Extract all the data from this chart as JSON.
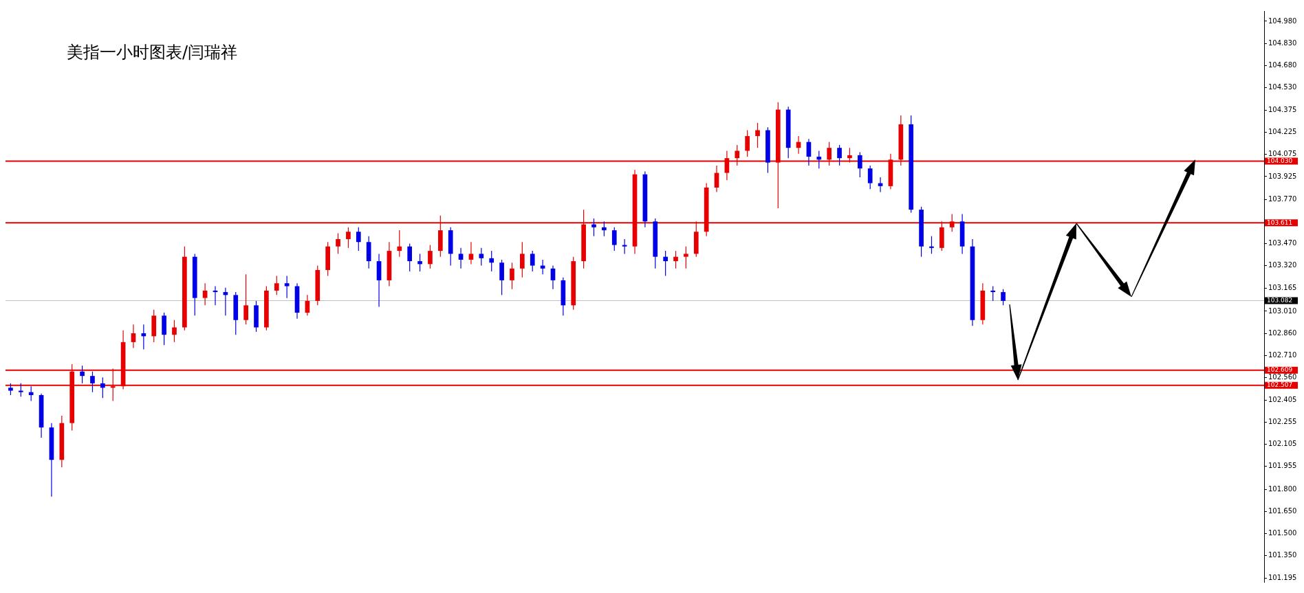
{
  "chart_data": {
    "type": "candlestick",
    "title": "美指一小时图表/闫瑞祥",
    "categories": [
      null,
      null,
      null,
      null,
      null,
      null,
      null,
      null,
      null,
      null,
      null,
      null,
      null,
      null,
      null,
      null,
      null,
      null,
      null,
      null,
      null,
      null,
      null,
      null,
      null,
      null,
      null,
      null,
      null,
      null,
      null,
      null,
      null,
      null,
      null,
      null,
      null,
      null,
      null,
      null,
      null,
      null,
      null,
      null,
      null,
      null,
      null,
      null,
      null,
      null,
      null,
      null,
      null,
      null,
      null,
      null,
      null,
      null,
      null,
      null,
      null,
      null,
      null,
      null,
      null,
      null,
      null,
      null,
      null,
      null,
      null,
      null,
      null,
      null,
      null,
      null,
      null,
      null,
      null,
      null,
      null,
      null,
      null,
      null,
      null,
      null,
      null,
      null,
      null,
      null,
      null,
      null,
      null,
      null,
      null,
      null,
      null,
      null,
      null,
      null,
      null,
      null,
      null,
      null,
      null,
      null,
      null,
      null,
      null,
      null,
      null,
      null,
      null,
      null,
      null,
      null,
      null,
      null,
      null,
      null,
      null,
      null,
      null
    ],
    "ohlc": [
      [
        102.49,
        102.52,
        102.44,
        102.47
      ],
      [
        102.47,
        102.52,
        102.43,
        102.46
      ],
      [
        102.46,
        102.5,
        102.4,
        102.44
      ],
      [
        102.44,
        102.45,
        102.15,
        102.22
      ],
      [
        102.22,
        102.25,
        101.75,
        102.0
      ],
      [
        102.0,
        102.3,
        101.95,
        102.25
      ],
      [
        102.25,
        102.65,
        102.2,
        102.6
      ],
      [
        102.6,
        102.64,
        102.52,
        102.57
      ],
      [
        102.57,
        102.6,
        102.46,
        102.52
      ],
      [
        102.52,
        102.56,
        102.42,
        102.49
      ],
      [
        102.49,
        102.62,
        102.4,
        102.5
      ],
      [
        102.5,
        102.88,
        102.48,
        102.8
      ],
      [
        102.8,
        102.92,
        102.76,
        102.86
      ],
      [
        102.86,
        102.92,
        102.75,
        102.84
      ],
      [
        102.84,
        103.02,
        102.8,
        102.98
      ],
      [
        102.98,
        103.0,
        102.78,
        102.85
      ],
      [
        102.85,
        102.95,
        102.8,
        102.9
      ],
      [
        102.9,
        103.45,
        102.88,
        103.38
      ],
      [
        103.38,
        103.4,
        102.98,
        103.1
      ],
      [
        103.1,
        103.2,
        103.05,
        103.15
      ],
      [
        103.15,
        103.18,
        103.05,
        103.14
      ],
      [
        103.14,
        103.17,
        102.98,
        103.12
      ],
      [
        103.12,
        103.14,
        102.85,
        102.95
      ],
      [
        102.95,
        103.26,
        102.92,
        103.05
      ],
      [
        103.05,
        103.08,
        102.87,
        102.9
      ],
      [
        102.9,
        103.18,
        102.88,
        103.15
      ],
      [
        103.15,
        103.25,
        103.12,
        103.2
      ],
      [
        103.2,
        103.25,
        103.1,
        103.18
      ],
      [
        103.18,
        103.2,
        102.96,
        103.0
      ],
      [
        103.0,
        103.12,
        102.98,
        103.08
      ],
      [
        103.08,
        103.32,
        103.05,
        103.29
      ],
      [
        103.29,
        103.48,
        103.25,
        103.45
      ],
      [
        103.45,
        103.54,
        103.4,
        103.5
      ],
      [
        103.5,
        103.58,
        103.44,
        103.55
      ],
      [
        103.55,
        103.58,
        103.42,
        103.48
      ],
      [
        103.48,
        103.52,
        103.3,
        103.35
      ],
      [
        103.35,
        103.4,
        103.04,
        103.22
      ],
      [
        103.22,
        103.48,
        103.18,
        103.42
      ],
      [
        103.42,
        103.56,
        103.38,
        103.45
      ],
      [
        103.45,
        103.47,
        103.28,
        103.35
      ],
      [
        103.35,
        103.4,
        103.28,
        103.33
      ],
      [
        103.33,
        103.46,
        103.3,
        103.42
      ],
      [
        103.42,
        103.66,
        103.38,
        103.56
      ],
      [
        103.56,
        103.58,
        103.32,
        103.4
      ],
      [
        103.4,
        103.44,
        103.3,
        103.36
      ],
      [
        103.36,
        103.48,
        103.33,
        103.4
      ],
      [
        103.4,
        103.44,
        103.32,
        103.37
      ],
      [
        103.37,
        103.42,
        103.28,
        103.34
      ],
      [
        103.34,
        103.36,
        103.12,
        103.22
      ],
      [
        103.22,
        103.34,
        103.16,
        103.3
      ],
      [
        103.3,
        103.48,
        103.24,
        103.4
      ],
      [
        103.4,
        103.42,
        103.28,
        103.32
      ],
      [
        103.32,
        103.36,
        103.26,
        103.3
      ],
      [
        103.3,
        103.32,
        103.16,
        103.22
      ],
      [
        103.22,
        103.24,
        102.98,
        103.05
      ],
      [
        103.05,
        103.38,
        103.02,
        103.35
      ],
      [
        103.35,
        103.7,
        103.3,
        103.6
      ],
      [
        103.6,
        103.64,
        103.52,
        103.58
      ],
      [
        103.58,
        103.62,
        103.52,
        103.56
      ],
      [
        103.56,
        103.58,
        103.42,
        103.46
      ],
      [
        103.46,
        103.5,
        103.4,
        103.45
      ],
      [
        103.45,
        103.97,
        103.4,
        103.94
      ],
      [
        103.94,
        103.96,
        103.58,
        103.62
      ],
      [
        103.62,
        103.64,
        103.3,
        103.38
      ],
      [
        103.38,
        103.42,
        103.25,
        103.35
      ],
      [
        103.35,
        103.42,
        103.3,
        103.38
      ],
      [
        103.38,
        103.45,
        103.3,
        103.4
      ],
      [
        103.4,
        103.62,
        103.38,
        103.55
      ],
      [
        103.55,
        103.88,
        103.52,
        103.85
      ],
      [
        103.85,
        104.0,
        103.82,
        103.95
      ],
      [
        103.95,
        104.1,
        103.9,
        104.05
      ],
      [
        104.05,
        104.14,
        104.0,
        104.1
      ],
      [
        104.1,
        104.24,
        104.06,
        104.2
      ],
      [
        104.2,
        104.29,
        104.12,
        104.24
      ],
      [
        104.24,
        104.26,
        103.95,
        104.02
      ],
      [
        104.02,
        104.43,
        103.71,
        104.38
      ],
      [
        104.38,
        104.4,
        104.05,
        104.12
      ],
      [
        104.12,
        104.2,
        104.08,
        104.16
      ],
      [
        104.16,
        104.18,
        104.0,
        104.06
      ],
      [
        104.06,
        104.1,
        103.98,
        104.04
      ],
      [
        104.04,
        104.16,
        104.0,
        104.12
      ],
      [
        104.12,
        104.14,
        104.0,
        104.05
      ],
      [
        104.05,
        104.12,
        104.02,
        104.07
      ],
      [
        104.07,
        104.09,
        103.92,
        103.98
      ],
      [
        103.98,
        104.0,
        103.84,
        103.88
      ],
      [
        103.88,
        103.92,
        103.82,
        103.86
      ],
      [
        103.86,
        104.08,
        103.84,
        104.04
      ],
      [
        104.04,
        104.34,
        104.0,
        104.28
      ],
      [
        104.28,
        104.34,
        103.68,
        103.7
      ],
      [
        103.7,
        103.72,
        103.38,
        103.45
      ],
      [
        103.45,
        103.52,
        103.4,
        103.44
      ],
      [
        103.44,
        103.62,
        103.42,
        103.58
      ],
      [
        103.58,
        103.67,
        103.55,
        103.62
      ],
      [
        103.62,
        103.67,
        103.4,
        103.45
      ],
      [
        103.45,
        103.5,
        102.91,
        102.95
      ],
      [
        102.95,
        103.2,
        102.92,
        103.15
      ],
      [
        103.15,
        103.18,
        103.08,
        103.14
      ],
      [
        103.14,
        103.16,
        103.05,
        103.08
      ],
      null,
      null,
      null,
      null,
      null,
      null,
      null,
      null,
      null,
      null,
      null,
      null,
      null,
      null,
      null,
      null,
      null,
      null,
      null,
      null,
      null,
      null,
      null,
      null,
      null
    ],
    "colors": [
      "#0000e6",
      "#0000e6",
      "#0000e6",
      "#0000e6",
      "#0000e6",
      "#e60000",
      "#e60000",
      "#0000e6",
      "#0000e6",
      "#0000e6",
      "#e60000",
      "#e60000",
      "#e60000",
      "#0000e6",
      "#e60000",
      "#0000e6",
      "#e60000",
      "#e60000",
      "#0000e6",
      "#e60000",
      "#0000e6",
      "#0000e6",
      "#0000e6",
      "#e60000",
      "#0000e6",
      "#e60000",
      "#e60000",
      "#0000e6",
      "#0000e6",
      "#e60000",
      "#e60000",
      "#e60000",
      "#e60000",
      "#e60000",
      "#0000e6",
      "#0000e6",
      "#0000e6",
      "#e60000",
      "#e60000",
      "#0000e6",
      "#0000e6",
      "#e60000",
      "#e60000",
      "#0000e6",
      "#0000e6",
      "#e60000",
      "#0000e6",
      "#0000e6",
      "#0000e6",
      "#e60000",
      "#e60000",
      "#0000e6",
      "#0000e6",
      "#0000e6",
      "#0000e6",
      "#e60000",
      "#e60000",
      "#0000e6",
      "#0000e6",
      "#0000e6",
      "#0000e6",
      "#e60000",
      "#0000e6",
      "#0000e6",
      "#0000e6",
      "#e60000",
      "#e60000",
      "#e60000",
      "#e60000",
      "#e60000",
      "#e60000",
      "#e60000",
      "#e60000",
      "#e60000",
      "#0000e6",
      "#e60000",
      "#0000e6",
      "#e60000",
      "#0000e6",
      "#0000e6",
      "#e60000",
      "#0000e6",
      "#e60000",
      "#0000e6",
      "#0000e6",
      "#0000e6",
      "#e60000",
      "#e60000",
      "#0000e6",
      "#0000e6",
      "#0000e6",
      "#e60000",
      "#e60000",
      "#0000e6",
      "#0000e6",
      "#e60000",
      "#0000e6",
      "#0000e6",
      null,
      null,
      null,
      null,
      null,
      null,
      null,
      null,
      null,
      null,
      null,
      null,
      null,
      null,
      null,
      null,
      null,
      null,
      null,
      null,
      null,
      null,
      null,
      null,
      null
    ],
    "ylim": [
      101.17,
      105.05
    ],
    "yticks": [
      {
        "value": 104.98,
        "label": "104.980"
      },
      {
        "value": 104.83,
        "label": "104.830"
      },
      {
        "value": 104.68,
        "label": "104.680"
      },
      {
        "value": 104.53,
        "label": "104.530"
      },
      {
        "value": 104.375,
        "label": "104.375"
      },
      {
        "value": 104.225,
        "label": "104.225"
      },
      {
        "value": 104.075,
        "label": "104.075"
      },
      {
        "value": 103.925,
        "label": "103.925"
      },
      {
        "value": 103.77,
        "label": "103.770"
      },
      {
        "value": 103.47,
        "label": "103.470"
      },
      {
        "value": 103.32,
        "label": "103.320"
      },
      {
        "value": 103.165,
        "label": "103.165"
      },
      {
        "value": 103.01,
        "label": "103.010"
      },
      {
        "value": 102.86,
        "label": "102.860"
      },
      {
        "value": 102.71,
        "label": "102.710"
      },
      {
        "value": 102.56,
        "label": "102.560"
      },
      {
        "value": 102.405,
        "label": "102.405"
      },
      {
        "value": 102.255,
        "label": "102.255"
      },
      {
        "value": 102.105,
        "label": "102.105"
      },
      {
        "value": 101.955,
        "label": "101.955"
      },
      {
        "value": 101.8,
        "label": "101.800"
      },
      {
        "value": 101.65,
        "label": "101.650"
      },
      {
        "value": 101.5,
        "label": "101.500"
      },
      {
        "value": 101.35,
        "label": "101.350"
      },
      {
        "value": 101.195,
        "label": "101.195"
      }
    ],
    "ref_lines": [
      {
        "axis": "y",
        "value": 104.03,
        "label": "104.030",
        "color": "#e60000"
      },
      {
        "axis": "y",
        "value": 103.611,
        "label": "103.611",
        "color": "#e60000"
      },
      {
        "axis": "y",
        "value": 103.082,
        "label": "103.082",
        "color": "#c0c0c0"
      },
      {
        "axis": "y",
        "value": 102.609,
        "label": "102.609",
        "color": "#e60000"
      },
      {
        "axis": "y",
        "value": 102.507,
        "label": "102.507",
        "color": "#e60000"
      }
    ],
    "tick_labels": "y"
  }
}
